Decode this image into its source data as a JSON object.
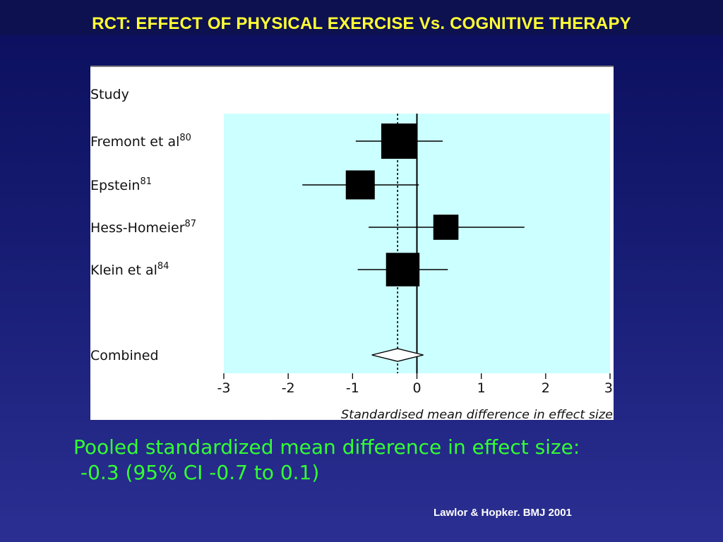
{
  "slide": {
    "title": "RCT: EFFECT OF PHYSICAL EXERCISE Vs. COGNITIVE THERAPY",
    "pooled_line1": "Pooled standardized mean difference in effect size:",
    "pooled_line2": "-0.3 (95% CI -0.7 to 0.1)",
    "citation": "Lawlor & Hopker. BMJ 2001"
  },
  "colors": {
    "title": "#ffff33",
    "pooled_text": "#33ff33",
    "plot_background": "#ccffff",
    "marker": "#000000"
  },
  "chart_data": {
    "type": "forest",
    "header": "Study",
    "xlabel": "Standardised mean difference in effect size",
    "xlim": [
      -3,
      3
    ],
    "xticks": [
      -3,
      -2,
      -1,
      0,
      1,
      2,
      3
    ],
    "studies": [
      {
        "name": "Fremont et al",
        "ref": "80",
        "estimate": -0.28,
        "lower": -0.95,
        "upper": 0.4,
        "weight": 1.0
      },
      {
        "name": "Epstein",
        "ref": "81",
        "estimate": -0.88,
        "lower": -1.78,
        "upper": 0.03,
        "weight": 0.72
      },
      {
        "name": "Hess-Homeier",
        "ref": "87",
        "estimate": 0.45,
        "lower": -0.75,
        "upper": 1.67,
        "weight": 0.55
      },
      {
        "name": "Klein et al",
        "ref": "84",
        "estimate": -0.22,
        "lower": -0.92,
        "upper": 0.48,
        "weight": 0.92
      }
    ],
    "combined": {
      "name": "Combined",
      "estimate": -0.3,
      "lower": -0.7,
      "upper": 0.1
    }
  }
}
